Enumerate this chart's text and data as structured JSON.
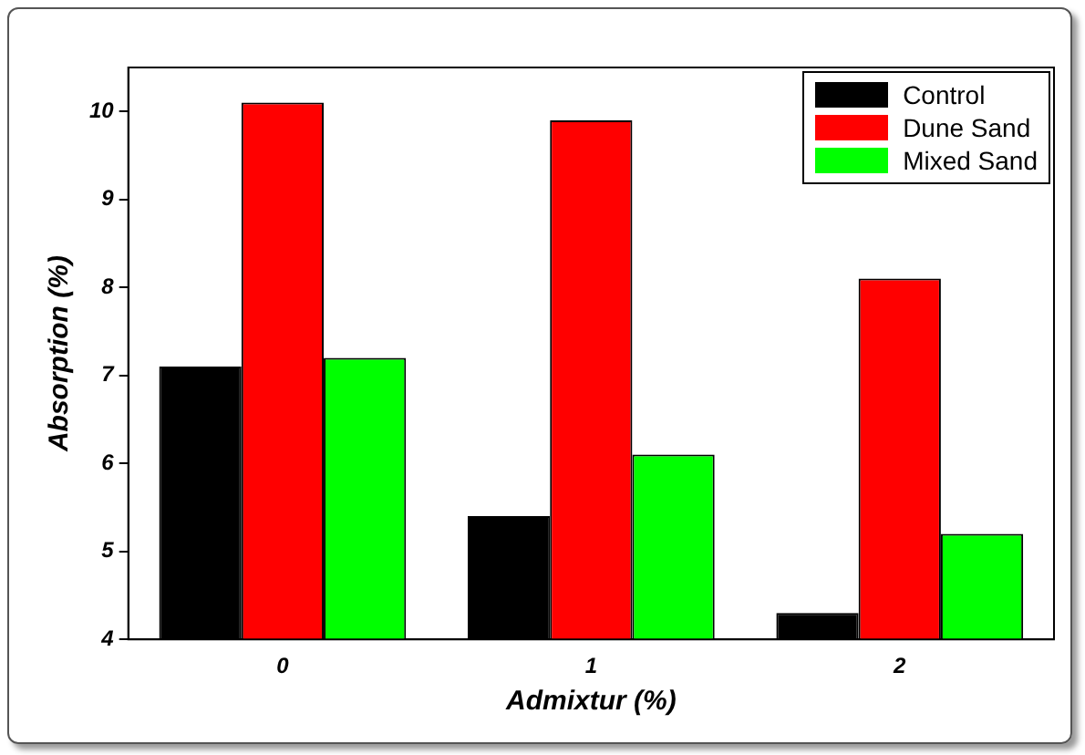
{
  "chart_data": {
    "type": "bar",
    "xlabel": "Admixtur (%)",
    "ylabel": "Absorption (%)",
    "categories": [
      "0",
      "1",
      "2"
    ],
    "series": [
      {
        "name": "Control",
        "color": "#000000",
        "values": [
          7.1,
          5.4,
          4.3
        ]
      },
      {
        "name": "Dune Sand",
        "color": "#ff0000",
        "values": [
          10.1,
          9.9,
          8.1
        ]
      },
      {
        "name": "Mixed Sand",
        "color": "#00ff00",
        "values": [
          7.2,
          6.1,
          5.2
        ]
      }
    ],
    "ylim": [
      4,
      10.5
    ],
    "yticks": [
      4,
      5,
      6,
      7,
      8,
      9,
      10
    ],
    "grid": false,
    "legend": "top right"
  }
}
